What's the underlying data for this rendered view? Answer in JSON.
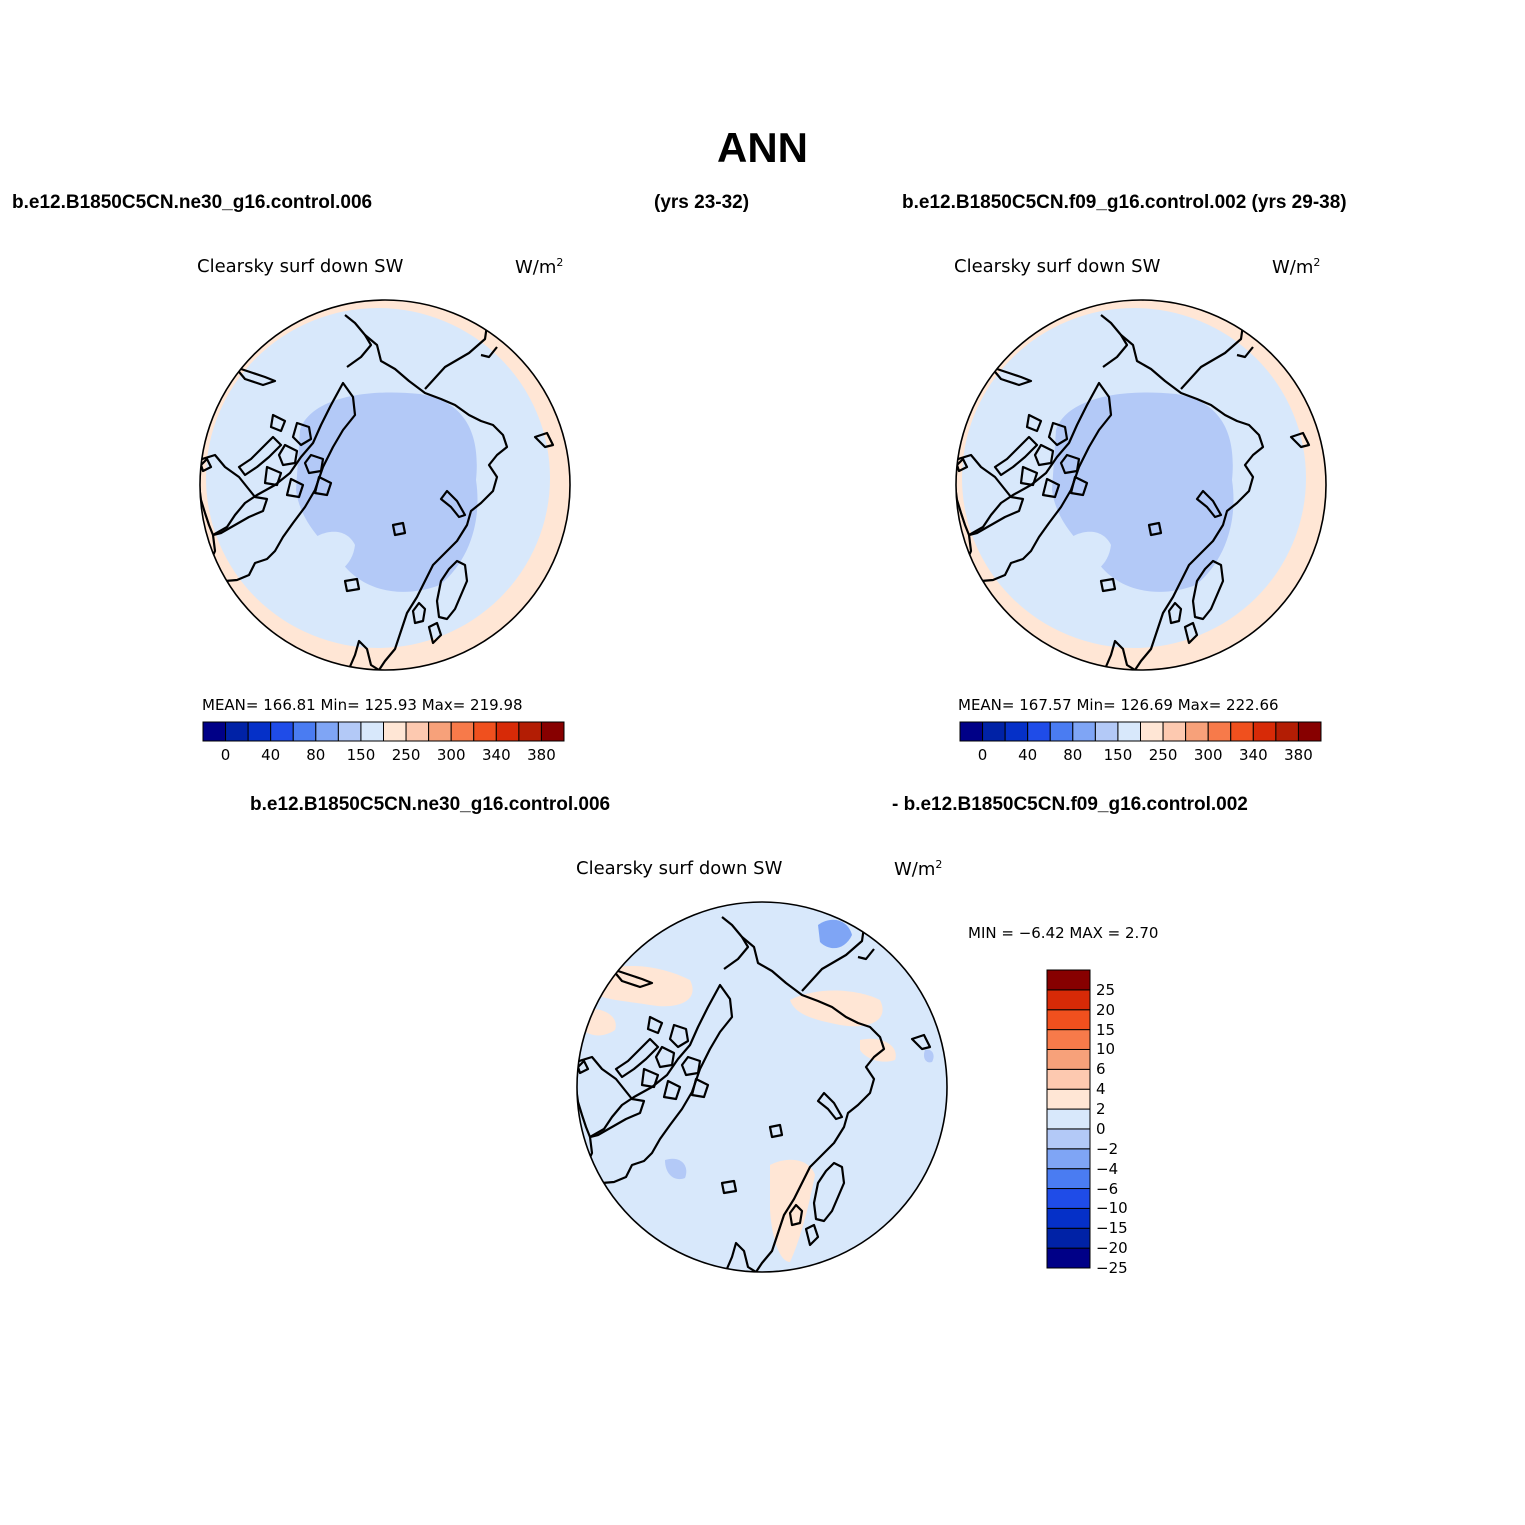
{
  "title": "ANN",
  "header": {
    "left_case": "b.e12.B1850C5CN.ne30_g16.control.006",
    "left_years": "(yrs 23-32)",
    "right_case": "b.e12.B1850C5CN.f09_g16.control.002 (yrs 29-38)",
    "diff_case_a": "b.e12.B1850C5CN.ne30_g16.control.006",
    "diff_case_b": "- b.e12.B1850C5CN.f09_g16.control.002"
  },
  "panels": [
    {
      "variable": "Clearsky surf down SW",
      "units": "W/m",
      "units_sup": "2",
      "stats": "MEAN= 166.81   Min= 125.93   Max= 219.98"
    },
    {
      "variable": "Clearsky surf down SW",
      "units": "W/m",
      "units_sup": "2",
      "stats": "MEAN= 167.57   Min= 126.69   Max= 222.66"
    },
    {
      "variable": "Clearsky surf down SW",
      "units": "W/m",
      "units_sup": "2",
      "stats": "MIN =   −6.42  MAX =    2.70"
    }
  ],
  "colorbar_horizontal": {
    "colors": [
      "#000087",
      "#0022a6",
      "#0530c8",
      "#1f4ce8",
      "#4a7cf2",
      "#7fa5f5",
      "#b3c9f7",
      "#d8e8fb",
      "#ffe6d5",
      "#fdc9b0",
      "#f7a17a",
      "#f77a4a",
      "#f0501e",
      "#d72a07",
      "#b31d04",
      "#870000"
    ],
    "labels": [
      "0",
      "40",
      "80",
      "150",
      "250",
      "300",
      "340",
      "380"
    ]
  },
  "colorbar_vertical": {
    "colors_bottom_to_top": [
      "#000087",
      "#0022a6",
      "#0530c8",
      "#1f4ce8",
      "#4a7cf2",
      "#7fa5f5",
      "#b3c9f7",
      "#d8e8fb",
      "#ffe6d5",
      "#fdc9b0",
      "#f7a17a",
      "#f77a4a",
      "#f0501e",
      "#d72a07",
      "#870000"
    ],
    "labels_top_to_bottom": [
      "25",
      "20",
      "15",
      "10",
      "6",
      "4",
      "2",
      "0",
      "−2",
      "−4",
      "−6",
      "−10",
      "−15",
      "−20",
      "−25"
    ]
  },
  "map_colors": {
    "land_outline": "#000000",
    "ocean_light": "#d8e8fb",
    "mid_blue": "#b3c9f7",
    "deep_blue": "#7fa5f5",
    "edge_peach": "#ffe6d5"
  }
}
